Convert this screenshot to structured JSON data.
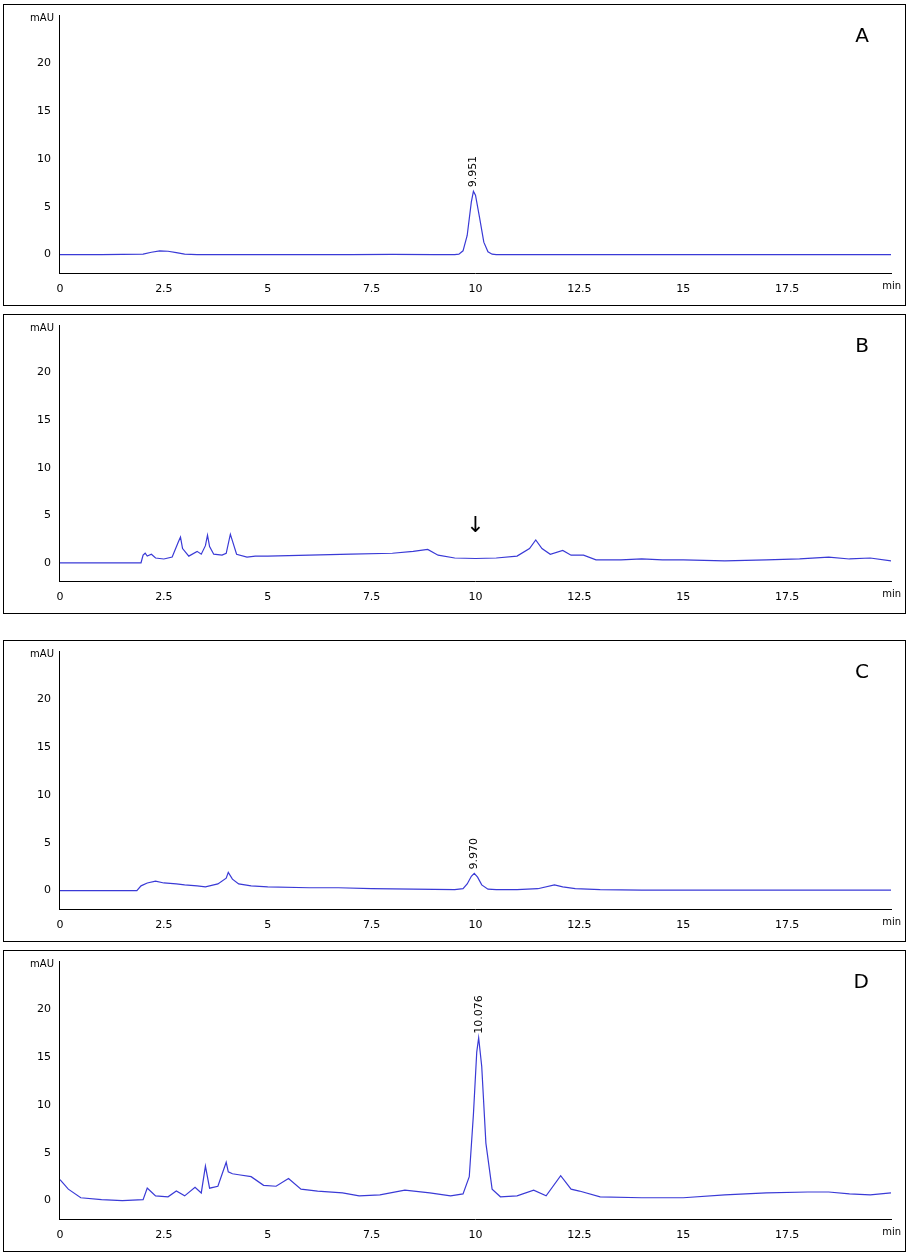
{
  "chart_data": [
    {
      "type": "line",
      "title": "A",
      "x_label": "min",
      "y_label": "mAU",
      "color": "#3a3ad6",
      "grid": false,
      "xlim": [
        0,
        20
      ],
      "xticks": [
        0,
        2.5,
        5,
        7.5,
        10,
        12.5,
        15,
        17.5
      ],
      "ylim": [
        -2,
        25
      ],
      "yticks": [
        0,
        5,
        10,
        15,
        20
      ],
      "x": [
        0,
        1,
        2,
        2.2,
        2.4,
        2.6,
        2.8,
        3,
        3.3,
        4,
        5,
        6,
        7,
        8,
        9,
        9.5,
        9.6,
        9.7,
        9.8,
        9.9,
        9.95,
        10.0,
        10.1,
        10.2,
        10.3,
        10.4,
        10.5,
        11,
        12,
        13,
        14,
        15,
        16,
        17,
        18,
        19,
        20
      ],
      "values": [
        0,
        0,
        0.05,
        0.25,
        0.4,
        0.35,
        0.2,
        0.05,
        0,
        0,
        0,
        0,
        0,
        0.02,
        0,
        0,
        0.05,
        0.4,
        2.0,
        5.5,
        6.6,
        6.2,
        3.8,
        1.3,
        0.3,
        0.05,
        0,
        0,
        0,
        0,
        0,
        0,
        0,
        0,
        0,
        0,
        0
      ],
      "annotations": [
        {
          "text": "9.951",
          "x": 9.951,
          "y": 6.6
        }
      ]
    },
    {
      "type": "line",
      "title": "B",
      "x_label": "min",
      "y_label": "mAU",
      "color": "#3a3ad6",
      "grid": false,
      "xlim": [
        0,
        20
      ],
      "xticks": [
        0,
        2.5,
        5,
        7.5,
        10,
        12.5,
        15,
        17.5
      ],
      "ylim": [
        -2,
        25
      ],
      "yticks": [
        0,
        5,
        10,
        15,
        20
      ],
      "x": [
        0,
        1,
        1.95,
        2.0,
        2.05,
        2.1,
        2.2,
        2.3,
        2.5,
        2.7,
        2.85,
        2.9,
        2.95,
        3.1,
        3.3,
        3.4,
        3.5,
        3.55,
        3.6,
        3.7,
        3.9,
        4.0,
        4.1,
        4.15,
        4.25,
        4.5,
        4.7,
        5,
        6,
        7,
        8,
        8.5,
        8.85,
        9.1,
        9.5,
        10,
        10.5,
        11,
        11.3,
        11.45,
        11.6,
        11.8,
        12.1,
        12.3,
        12.6,
        12.9,
        13.5,
        14,
        14.5,
        15,
        16,
        17,
        17.8,
        18.5,
        19,
        19.5,
        20
      ],
      "values": [
        0,
        0,
        0,
        0.8,
        1.0,
        0.7,
        0.9,
        0.5,
        0.4,
        0.6,
        2.2,
        2.7,
        1.5,
        0.7,
        1.2,
        0.9,
        1.8,
        2.9,
        1.7,
        0.9,
        0.8,
        1.0,
        3.0,
        2.3,
        0.9,
        0.6,
        0.7,
        0.7,
        0.8,
        0.9,
        1.0,
        1.2,
        1.4,
        0.8,
        0.5,
        0.45,
        0.5,
        0.7,
        1.5,
        2.4,
        1.5,
        0.9,
        1.3,
        0.8,
        0.8,
        0.3,
        0.3,
        0.4,
        0.3,
        0.3,
        0.2,
        0.3,
        0.4,
        0.6,
        0.4,
        0.5,
        0.2
      ],
      "annotations": [
        {
          "text": "↓",
          "x": 10,
          "y": 3.8
        }
      ]
    },
    {
      "type": "line",
      "title": "C",
      "x_label": "min",
      "y_label": "mAU",
      "color": "#3a3ad6",
      "grid": false,
      "xlim": [
        0,
        20
      ],
      "xticks": [
        0,
        2.5,
        5,
        7.5,
        10,
        12.5,
        15,
        17.5
      ],
      "ylim": [
        -2,
        25
      ],
      "yticks": [
        0,
        5,
        10,
        15,
        20
      ],
      "x": [
        0,
        1,
        1.85,
        1.95,
        2.1,
        2.3,
        2.5,
        2.8,
        3.0,
        3.3,
        3.5,
        3.8,
        4.0,
        4.05,
        4.15,
        4.3,
        4.6,
        5,
        6,
        6.7,
        7.5,
        8.5,
        9.5,
        9.7,
        9.8,
        9.9,
        9.97,
        10.05,
        10.15,
        10.3,
        10.5,
        11,
        11.5,
        11.9,
        12.1,
        12.4,
        13,
        14,
        15,
        16,
        17,
        18,
        19,
        20
      ],
      "values": [
        0,
        0,
        0,
        0.5,
        0.8,
        1.0,
        0.8,
        0.7,
        0.6,
        0.5,
        0.4,
        0.7,
        1.3,
        1.9,
        1.2,
        0.7,
        0.5,
        0.4,
        0.3,
        0.3,
        0.2,
        0.15,
        0.1,
        0.2,
        0.7,
        1.5,
        1.8,
        1.4,
        0.6,
        0.15,
        0.1,
        0.1,
        0.2,
        0.6,
        0.4,
        0.2,
        0.1,
        0.05,
        0.05,
        0.05,
        0.05,
        0.05,
        0.05,
        0.05
      ],
      "annotations": [
        {
          "text": "9.970",
          "x": 9.97,
          "y": 1.8
        }
      ]
    },
    {
      "type": "line",
      "title": "D",
      "x_label": "min",
      "y_label": "mAU",
      "color": "#3a3ad6",
      "grid": false,
      "xlim": [
        0,
        20
      ],
      "xticks": [
        0,
        2.5,
        5,
        7.5,
        10,
        12.5,
        15,
        17.5
      ],
      "ylim": [
        -2,
        25
      ],
      "yticks": [
        0,
        5,
        10,
        15,
        20
      ],
      "x": [
        0,
        0.2,
        0.5,
        1,
        1.5,
        2.0,
        2.1,
        2.2,
        2.3,
        2.6,
        2.8,
        3.0,
        3.25,
        3.4,
        3.5,
        3.6,
        3.8,
        4.0,
        4.05,
        4.15,
        4.3,
        4.6,
        4.9,
        5.2,
        5.5,
        5.8,
        6.2,
        6.8,
        7.2,
        7.7,
        8.3,
        8.9,
        9.4,
        9.7,
        9.85,
        9.95,
        10.03,
        10.076,
        10.15,
        10.25,
        10.4,
        10.6,
        11,
        11.4,
        11.7,
        12.05,
        12.3,
        12.5,
        13,
        14,
        15,
        16,
        17,
        18,
        18.5,
        19,
        19.5,
        20
      ],
      "values": [
        2.2,
        1.2,
        0.3,
        0.1,
        0,
        0.1,
        1.3,
        0.9,
        0.5,
        0.4,
        1.0,
        0.5,
        1.4,
        0.8,
        3.6,
        1.3,
        1.5,
        4.0,
        3.0,
        2.8,
        2.7,
        2.5,
        1.6,
        1.5,
        2.3,
        1.2,
        1.0,
        0.8,
        0.5,
        0.6,
        1.1,
        0.8,
        0.5,
        0.7,
        2.5,
        9.0,
        15.5,
        17.0,
        14.0,
        6.0,
        1.2,
        0.4,
        0.5,
        1.1,
        0.5,
        2.6,
        1.2,
        1.0,
        0.4,
        0.3,
        0.3,
        0.6,
        0.8,
        0.9,
        0.9,
        0.7,
        0.6,
        0.8
      ],
      "annotations": [
        {
          "text": "10.076",
          "x": 10.076,
          "y": 17.0
        }
      ]
    }
  ]
}
